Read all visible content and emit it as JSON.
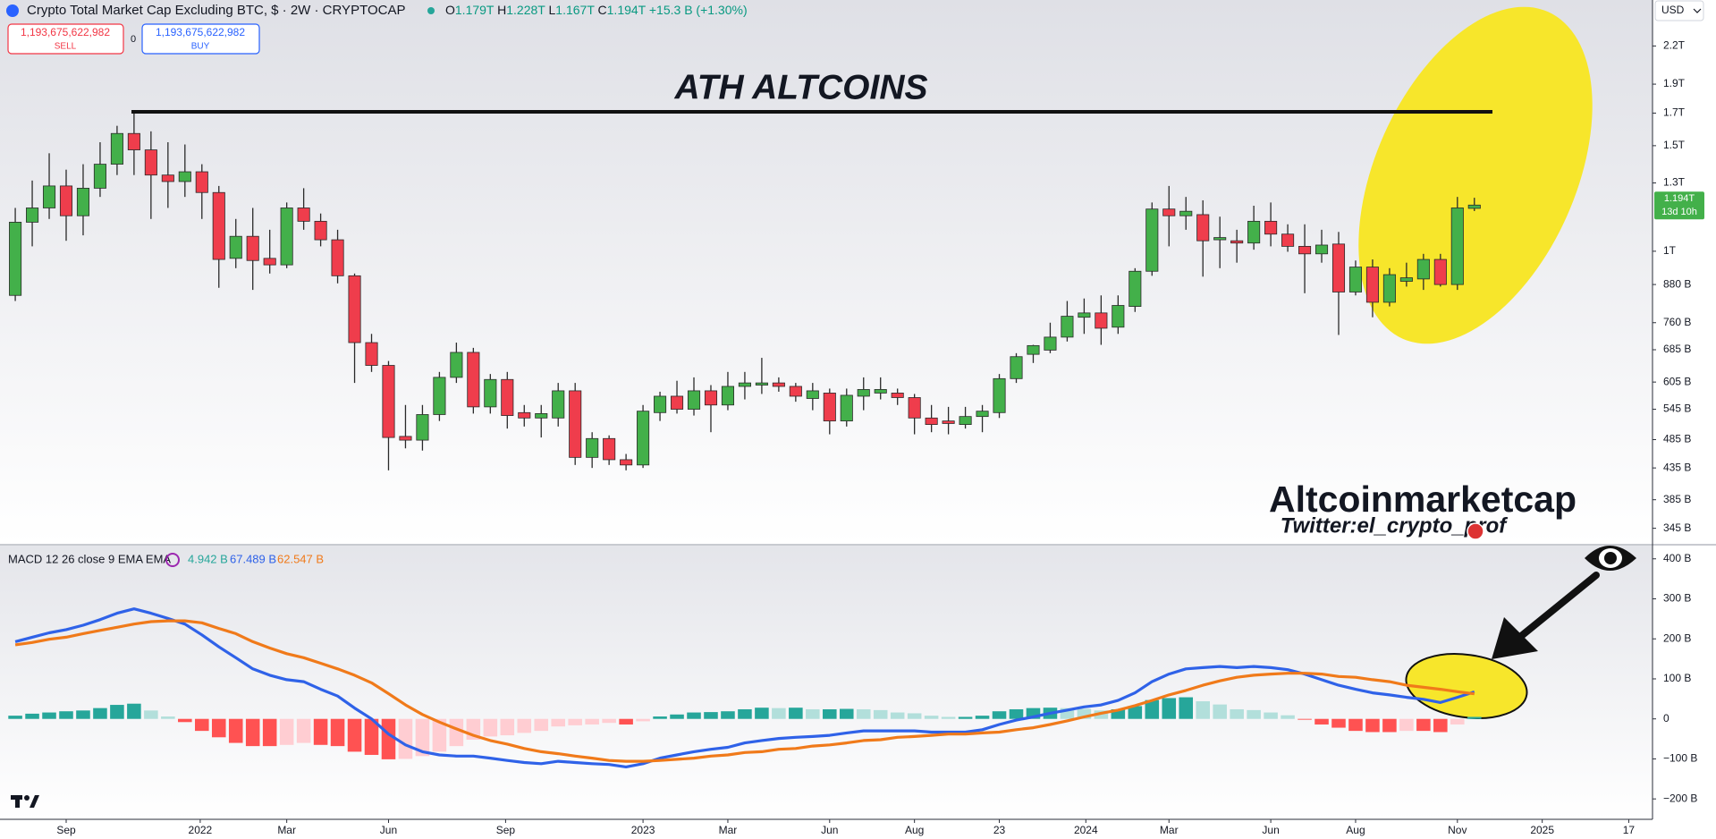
{
  "header": {
    "title": "Crypto Total Market Cap Excluding BTC, $ · 2W · CRYPTOCAP",
    "ohlc": [
      {
        "label": "O",
        "value": "1.179T"
      },
      {
        "label": "H",
        "value": "1.228T"
      },
      {
        "label": "L",
        "value": "1.167T"
      },
      {
        "label": "C",
        "value": "1.194T"
      }
    ],
    "change": "+15.3 B (+1.30%)",
    "sell_price": "1,193,675,622,982",
    "sell_label": "SELL",
    "spread": "0",
    "buy_price": "1,193,675,622,982",
    "buy_label": "BUY",
    "currency": "USD"
  },
  "annotations": {
    "ath": "ATH ALTCOINS",
    "brand": "Altcoinmarketcap",
    "twitter": "Twitter:el_crypto_prof"
  },
  "chart_data": [
    {
      "type": "candlestick",
      "log_scale": true,
      "colors": {
        "up": "#43b04a",
        "down": "#ef3d4c",
        "border": "#2a2a2a",
        "badge": "#43b04a"
      },
      "open": [
        844,
        1118,
        1181,
        1285,
        1146,
        1274,
        1397,
        1572,
        1476,
        1340,
        1307,
        1357,
        1253,
        973,
        1059,
        973,
        949,
        1181,
        1122,
        1045,
        910,
        704,
        645,
        491,
        484,
        534,
        616,
        678,
        550,
        611,
        538,
        527,
        527,
        585,
        453,
        487,
        449,
        440,
        538,
        573,
        545,
        585,
        554,
        595,
        598,
        603,
        595,
        568,
        580,
        521,
        573,
        580,
        580,
        570,
        527,
        521,
        514,
        530,
        538,
        613,
        673,
        684,
        719,
        776,
        789,
        747,
        809,
        926,
        1176,
        1146,
        1151,
        1045,
        1041,
        1032,
        1122,
        1068,
        1019,
        990,
        1028,
        855,
        941,
        822,
        891,
        899,
        969,
        880,
        1179
      ],
      "high": [
        1181,
        1312,
        1457,
        1368,
        1397,
        1520,
        1619,
        1710,
        1585,
        1520,
        1507,
        1397,
        1285,
        1132,
        1181,
        1086,
        1206,
        1274,
        1156,
        1086,
        918,
        728,
        656,
        554,
        554,
        629,
        704,
        690,
        624,
        629,
        554,
        554,
        603,
        603,
        499,
        493,
        459,
        554,
        583,
        608,
        616,
        598,
        629,
        629,
        664,
        616,
        603,
        603,
        590,
        590,
        616,
        616,
        590,
        578,
        554,
        550,
        550,
        554,
        624,
        676,
        698,
        760,
        826,
        834,
        844,
        844,
        937,
        1206,
        1285,
        1232,
        1216,
        1142,
        1086,
        1191,
        1206,
        1109,
        1109,
        1086,
        1077,
        965,
        969,
        937,
        957,
        990,
        990,
        1232,
        1228
      ],
      "low": [
        826,
        1019,
        1132,
        1041,
        1063,
        1232,
        1340,
        1340,
        1132,
        1181,
        1232,
        1132,
        869,
        937,
        862,
        918,
        937,
        1086,
        1019,
        884,
        603,
        629,
        431,
        469,
        465,
        521,
        603,
        536,
        536,
        506,
        510,
        489,
        510,
        440,
        435,
        440,
        431,
        435,
        521,
        536,
        532,
        499,
        543,
        566,
        578,
        583,
        561,
        543,
        495,
        510,
        543,
        566,
        554,
        495,
        499,
        495,
        506,
        499,
        527,
        603,
        651,
        676,
        707,
        728,
        698,
        728,
        792,
        910,
        1019,
        1086,
        907,
        937,
        957,
        1006,
        1019,
        998,
        851,
        957,
        725,
        844,
        776,
        809,
        873,
        862,
        873,
        862,
        1167
      ],
      "close": [
        1118,
        1181,
        1285,
        1146,
        1274,
        1397,
        1572,
        1476,
        1340,
        1307,
        1357,
        1253,
        969,
        1059,
        965,
        949,
        1181,
        1122,
        1045,
        910,
        704,
        645,
        489,
        484,
        534,
        616,
        678,
        550,
        611,
        532,
        527,
        536,
        585,
        453,
        487,
        449,
        440,
        541,
        573,
        545,
        585,
        554,
        595,
        603,
        603,
        595,
        573,
        585,
        521,
        575,
        588,
        588,
        570,
        527,
        514,
        516,
        530,
        541,
        613,
        667,
        696,
        719,
        779,
        789,
        744,
        812,
        926,
        1176,
        1146,
        1166,
        1041,
        1054,
        1032,
        1122,
        1068,
        1019,
        990,
        1024,
        855,
        941,
        822,
        914,
        903,
        969,
        880,
        1181,
        1194
      ],
      "last_price_label": "1.194T",
      "countdown": "13d 10h",
      "ylim": [
        325,
        2625
      ],
      "yticks": [
        {
          "value": 2200,
          "label": "2.2T"
        },
        {
          "value": 1900,
          "label": "1.9T"
        },
        {
          "value": 1700,
          "label": "1.7T"
        },
        {
          "value": 1500,
          "label": "1.5T"
        },
        {
          "value": 1300,
          "label": "1.3T"
        },
        {
          "value": 1000,
          "label": "1T"
        },
        {
          "value": 880,
          "label": "880 B"
        },
        {
          "value": 760,
          "label": "760 B"
        },
        {
          "value": 685,
          "label": "685 B"
        },
        {
          "value": 605,
          "label": "605 B"
        },
        {
          "value": 545,
          "label": "545 B"
        },
        {
          "value": 485,
          "label": "485 B"
        },
        {
          "value": 435,
          "label": "435 B"
        },
        {
          "value": 385,
          "label": "385 B"
        },
        {
          "value": 345,
          "label": "345 B"
        }
      ],
      "xlim": [
        -0.9,
        96.5
      ],
      "xticks": [
        {
          "value": 3,
          "label": "Sep"
        },
        {
          "value": 10.9,
          "label": "2022"
        },
        {
          "value": 16,
          "label": "Mar"
        },
        {
          "value": 22,
          "label": "Jun"
        },
        {
          "value": 28.9,
          "label": "Sep"
        },
        {
          "value": 37,
          "label": "2023"
        },
        {
          "value": 42,
          "label": "Mar"
        },
        {
          "value": 48,
          "label": "Jun"
        },
        {
          "value": 53,
          "label": "Aug"
        },
        {
          "value": 58,
          "label": "23"
        },
        {
          "value": 63.1,
          "label": "2024"
        },
        {
          "value": 68,
          "label": "Mar"
        },
        {
          "value": 74,
          "label": "Jun"
        },
        {
          "value": 79,
          "label": "Aug"
        },
        {
          "value": 85,
          "label": "Nov"
        },
        {
          "value": 90,
          "label": "2025"
        },
        {
          "value": 95.1,
          "label": "17"
        }
      ]
    },
    {
      "type": "macd",
      "title": "MACD 12 26 close 9 EMA EMA",
      "legend_values": [
        "4.942 B",
        "67.489 B",
        "62.547 B"
      ],
      "histogram": {
        "colors": {
          "up_strong": "#26a69a",
          "up_weak": "#b2dfdb",
          "down_strong": "#ff5252",
          "down_weak": "#ffcdd2"
        },
        "values": [
          8,
          13,
          16,
          19,
          21,
          27,
          35,
          38,
          21,
          6,
          -8,
          -30,
          -46,
          -60,
          -68,
          -68,
          -65,
          -60,
          -65,
          -68,
          -82,
          -90,
          -101,
          -100,
          -93,
          -82,
          -68,
          -52,
          -44,
          -41,
          -35,
          -30,
          -19,
          -16,
          -14,
          -10,
          -14,
          -6,
          6,
          11,
          16,
          17,
          19,
          24,
          28,
          27,
          28,
          24,
          24,
          25,
          24,
          22,
          16,
          14,
          8,
          5,
          5,
          8,
          19,
          24,
          27,
          28,
          27,
          25,
          21,
          24,
          32,
          47,
          52,
          54,
          44,
          36,
          24,
          22,
          16,
          9,
          -2,
          -14,
          -22,
          -30,
          -33,
          -33,
          -30,
          -30,
          -33,
          -14,
          4.942
        ]
      },
      "series": [
        {
          "color": "#2f62e8",
          "values": [
            193,
            204,
            215,
            223,
            234,
            248,
            264,
            275,
            264,
            251,
            237,
            210,
            180,
            153,
            125,
            109,
            98,
            93,
            74,
            57,
            27,
            0,
            -38,
            -65,
            -82,
            -90,
            -93,
            -93,
            -98,
            -104,
            -109,
            -112,
            -106,
            -109,
            -112,
            -114,
            -120,
            -112,
            -98,
            -90,
            -82,
            -76,
            -71,
            -60,
            -54,
            -49,
            -46,
            -44,
            -41,
            -35,
            -30,
            -30,
            -30,
            -30,
            -33,
            -33,
            -33,
            -27,
            -14,
            -3,
            5,
            14,
            22,
            30,
            35,
            46,
            65,
            93,
            112,
            125,
            128,
            131,
            128,
            131,
            128,
            123,
            112,
            98,
            84,
            74,
            65,
            60,
            54,
            49,
            41,
            54,
            67.489
          ]
        },
        {
          "color": "#f07a1a",
          "values": [
            185,
            191,
            199,
            204,
            213,
            221,
            229,
            237,
            243,
            245,
            245,
            240,
            226,
            213,
            193,
            177,
            163,
            153,
            139,
            125,
            109,
            90,
            63,
            35,
            11,
            -8,
            -25,
            -41,
            -54,
            -63,
            -74,
            -82,
            -87,
            -93,
            -98,
            -104,
            -106,
            -106,
            -104,
            -101,
            -98,
            -93,
            -90,
            -84,
            -82,
            -76,
            -74,
            -68,
            -65,
            -60,
            -54,
            -52,
            -46,
            -44,
            -41,
            -38,
            -38,
            -35,
            -33,
            -27,
            -22,
            -14,
            -5,
            5,
            14,
            22,
            33,
            46,
            60,
            71,
            84,
            95,
            104,
            109,
            112,
            114,
            114,
            112,
            106,
            104,
            98,
            93,
            84,
            79,
            74,
            68,
            62.547
          ]
        }
      ],
      "ylim": [
        -251,
        433
      ],
      "yticks": [
        {
          "value": 400,
          "label": "400 B"
        },
        {
          "value": 300,
          "label": "300 B"
        },
        {
          "value": 200,
          "label": "200 B"
        },
        {
          "value": 100,
          "label": "100 B"
        },
        0,
        {
          "value": -100,
          "label": "−100 B"
        },
        {
          "value": -200,
          "label": "−200 B"
        }
      ]
    }
  ]
}
